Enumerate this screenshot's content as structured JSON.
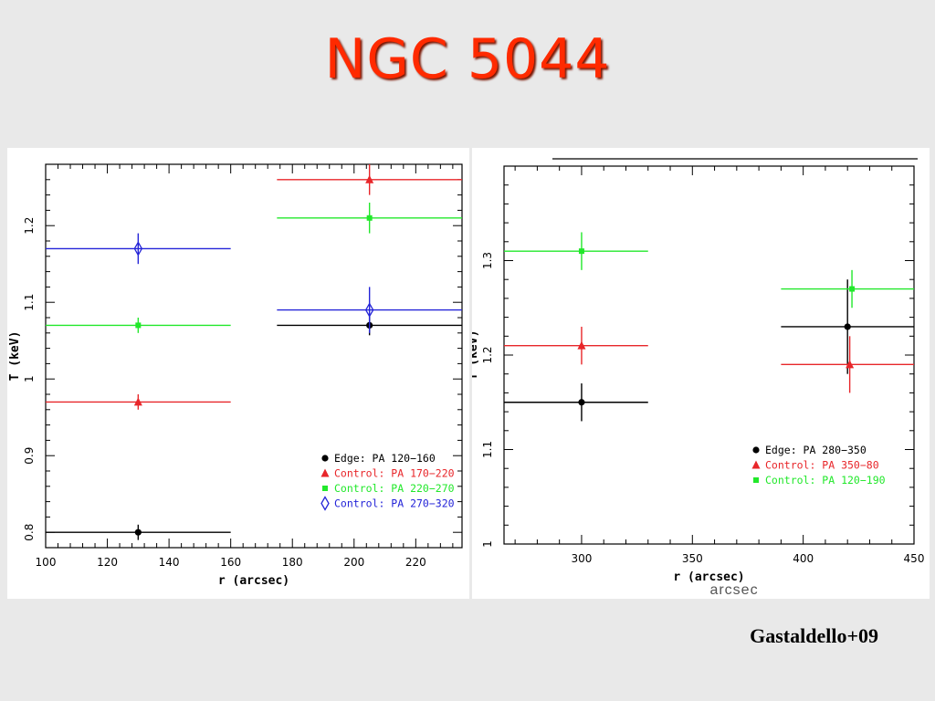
{
  "slide": {
    "title": "NGC 5044",
    "credit": "Gastaldello+09"
  },
  "chart_data": [
    {
      "type": "scatter",
      "xlabel": "r (arcsec)",
      "ylabel": "T (keV)",
      "xlim": [
        100,
        235
      ],
      "ylim": [
        0.78,
        1.28
      ],
      "xticks": [
        100,
        120,
        140,
        160,
        180,
        200,
        220
      ],
      "yticks": [
        0.8,
        0.9,
        1,
        1.1,
        1.2
      ],
      "ytick_labels": [
        "0.8",
        "0.9",
        "1",
        "1.1",
        "1.2"
      ],
      "legend_position": "bottom-right",
      "series": [
        {
          "name": "Edge: PA 120−160",
          "color": "#000000",
          "marker": "circle",
          "points": [
            {
              "x": 130,
              "xlo": 100,
              "xhi": 160,
              "y": 0.8,
              "yerr": 0.01
            },
            {
              "x": 205,
              "xlo": 175,
              "xhi": 235,
              "y": 1.07,
              "yerr": 0.013
            }
          ]
        },
        {
          "name": "Control: PA 170−220",
          "color": "#e8262a",
          "marker": "triangle",
          "points": [
            {
              "x": 130,
              "xlo": 100,
              "xhi": 160,
              "y": 0.97,
              "yerr": 0.01
            },
            {
              "x": 205,
              "xlo": 175,
              "xhi": 235,
              "y": 1.26,
              "yerr": 0.02
            }
          ]
        },
        {
          "name": "Control: PA 220−270",
          "color": "#22e82b",
          "marker": "square",
          "points": [
            {
              "x": 130,
              "xlo": 100,
              "xhi": 160,
              "y": 1.07,
              "yerr": 0.01
            },
            {
              "x": 205,
              "xlo": 175,
              "xhi": 235,
              "y": 1.21,
              "yerr": 0.02
            }
          ]
        },
        {
          "name": "Control: PA 270−320",
          "color": "#2424d8",
          "marker": "diamond",
          "points": [
            {
              "x": 130,
              "xlo": 100,
              "xhi": 160,
              "y": 1.17,
              "yerr": 0.02
            },
            {
              "x": 205,
              "xlo": 175,
              "xhi": 235,
              "y": 1.09,
              "yerr": 0.03
            }
          ]
        }
      ]
    },
    {
      "type": "scatter",
      "xlabel": "r (arcsec)",
      "ylabel": "T (keV)",
      "xlim": [
        265,
        450
      ],
      "ylim": [
        1.0,
        1.4
      ],
      "xticks": [
        300,
        350,
        400,
        450
      ],
      "yticks": [
        1.0,
        1.1,
        1.2,
        1.3
      ],
      "ytick_labels": [
        "1",
        "1.1",
        "1.2",
        "1.3"
      ],
      "legend_position": "bottom-right",
      "series": [
        {
          "name": "Edge: PA 280−350",
          "color": "#000000",
          "marker": "circle",
          "points": [
            {
              "x": 300,
              "xlo": 265,
              "xhi": 330,
              "y": 1.15,
              "yerr": 0.02
            },
            {
              "x": 420,
              "xlo": 390,
              "xhi": 450,
              "y": 1.23,
              "yerr": 0.05
            }
          ]
        },
        {
          "name": "Control: PA 350−80",
          "color": "#e8262a",
          "marker": "triangle",
          "points": [
            {
              "x": 300,
              "xlo": 265,
              "xhi": 330,
              "y": 1.21,
              "yerr": 0.02
            },
            {
              "x": 421,
              "xlo": 390,
              "xhi": 450,
              "y": 1.19,
              "yerr": 0.03
            }
          ]
        },
        {
          "name": "Control: PA 120−190",
          "color": "#22e82b",
          "marker": "square",
          "points": [
            {
              "x": 300,
              "xlo": 265,
              "xhi": 330,
              "y": 1.31,
              "yerr": 0.02
            },
            {
              "x": 422,
              "xlo": 390,
              "xhi": 450,
              "y": 1.27,
              "yerr": 0.02
            }
          ]
        }
      ],
      "overlay_text": "arcsec"
    }
  ]
}
